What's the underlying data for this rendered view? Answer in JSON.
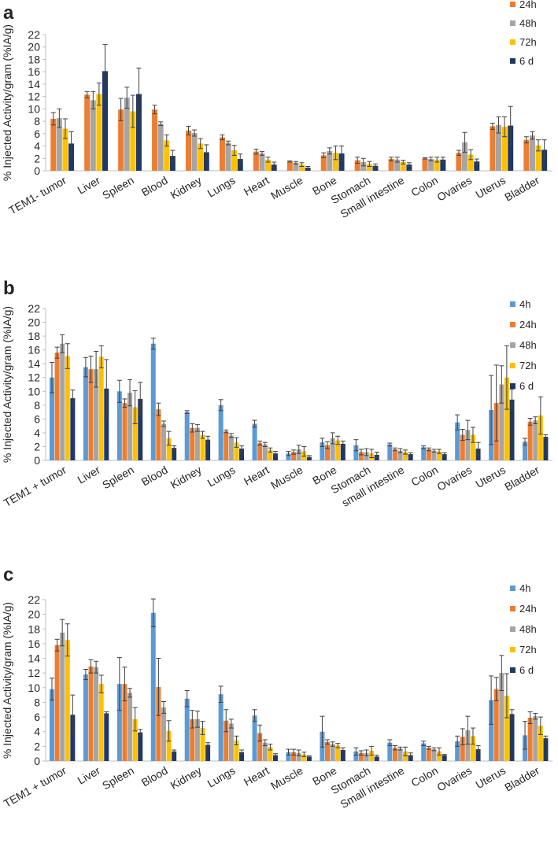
{
  "colors": {
    "4h": "#5b9bd5",
    "24h": "#ed7d31",
    "48h": "#a5a5a5",
    "72h": "#ffc000",
    "6 d": "#203864"
  },
  "chart_data": [
    {
      "type": "bar",
      "panel": "a",
      "ylabel": "% Injected Activity/gram (%IA/g)",
      "ylim": [
        0,
        22
      ],
      "yticks": [
        0,
        2,
        4,
        6,
        8,
        10,
        12,
        14,
        16,
        18,
        20,
        22
      ],
      "categories": [
        "TEM1- tumor",
        "Liver",
        "Spleen",
        "Blood",
        "Kidney",
        "Lungs",
        "Heart",
        "Muscle",
        "Bone",
        "Stomach",
        "Small intestine",
        "Colon",
        "Ovaries",
        "Uterus",
        "Bladder"
      ],
      "series": [
        {
          "name": "24h",
          "values": [
            8.4,
            12.3,
            9.9,
            9.9,
            6.5,
            5.4,
            3.1,
            1.5,
            2.5,
            1.7,
            1.9,
            2.0,
            2.9,
            7.2,
            5.0
          ],
          "errors": [
            1.0,
            0.5,
            1.8,
            0.7,
            0.7,
            0.4,
            0.4,
            0.1,
            0.4,
            0.5,
            0.3,
            0.1,
            0.4,
            0.5,
            0.5
          ]
        },
        {
          "name": "48h",
          "values": [
            8.5,
            11.4,
            11.8,
            7.6,
            6.1,
            4.5,
            2.8,
            1.3,
            3.2,
            1.4,
            1.8,
            1.9,
            4.6,
            7.4,
            5.7
          ],
          "errors": [
            1.5,
            1.4,
            1.7,
            0.3,
            0.5,
            0.3,
            0.3,
            0.2,
            0.5,
            0.6,
            0.4,
            0.3,
            1.6,
            1.3,
            0.6
          ]
        },
        {
          "name": "72h",
          "values": [
            6.8,
            12.4,
            9.6,
            4.9,
            4.4,
            3.3,
            1.8,
            1.0,
            2.9,
            1.1,
            1.4,
            1.8,
            2.6,
            7.1,
            4.1
          ],
          "errors": [
            1.6,
            1.8,
            2.6,
            0.9,
            0.8,
            0.8,
            0.4,
            0.3,
            1.1,
            0.4,
            0.3,
            0.4,
            0.8,
            1.6,
            0.9
          ]
        },
        {
          "name": "6 d",
          "values": [
            4.4,
            16.1,
            12.4,
            2.4,
            3.0,
            1.9,
            1.0,
            0.5,
            2.8,
            0.8,
            1.0,
            1.8,
            1.5,
            7.3,
            3.4
          ],
          "errors": [
            1.9,
            4.3,
            4.2,
            0.9,
            1.2,
            0.8,
            0.4,
            0.2,
            1.2,
            0.3,
            0.3,
            0.4,
            0.4,
            3.1,
            1.6
          ]
        }
      ],
      "legend": [
        "24h",
        "48h",
        "72h",
        "6 d"
      ]
    },
    {
      "type": "bar",
      "panel": "b",
      "ylabel": "% Injected  Activity/gram (%IA/g)",
      "ylim": [
        0,
        22
      ],
      "yticks": [
        0,
        2,
        4,
        6,
        8,
        10,
        12,
        14,
        16,
        18,
        20,
        22
      ],
      "categories": [
        "TEM1 + tumor",
        "Liver",
        "Spleen",
        "Blood",
        "Kidney",
        "Lungs",
        "Heart",
        "Muscle",
        "Bone",
        "Stomach",
        "small intestine",
        "Colon",
        "Ovaries",
        "Uterus",
        "Bladder"
      ],
      "series": [
        {
          "name": "4h",
          "values": [
            12.0,
            13.5,
            10.0,
            16.9,
            7.0,
            8.0,
            5.3,
            1.0,
            2.6,
            2.2,
            2.3,
            1.9,
            5.5,
            7.3,
            2.7
          ],
          "errors": [
            2.2,
            1.4,
            1.6,
            0.8,
            0.2,
            0.8,
            0.5,
            0.3,
            0.6,
            0.8,
            0.2,
            0.2,
            1.1,
            5.0,
            0.5
          ]
        },
        {
          "name": "24h",
          "values": [
            15.6,
            13.2,
            8.3,
            7.4,
            4.7,
            4.2,
            2.5,
            1.2,
            2.2,
            1.2,
            1.6,
            1.6,
            3.7,
            8.3,
            5.6
          ],
          "errors": [
            0.8,
            1.9,
            0.6,
            0.9,
            0.6,
            0.2,
            0.3,
            0.3,
            0.5,
            0.4,
            0.2,
            0.2,
            0.8,
            5.5,
            0.5
          ]
        },
        {
          "name": "48h",
          "values": [
            16.9,
            13.2,
            9.8,
            5.3,
            4.7,
            3.6,
            2.3,
            1.6,
            3.2,
            1.2,
            1.4,
            1.4,
            4.4,
            11.0,
            5.8
          ],
          "errors": [
            1.3,
            2.6,
            1.9,
            0.4,
            0.5,
            0.3,
            0.3,
            0.6,
            0.8,
            0.5,
            0.3,
            0.2,
            1.4,
            2.7,
            0.5
          ]
        },
        {
          "name": "72h",
          "values": [
            15.1,
            15.0,
            7.7,
            3.2,
            3.7,
            2.6,
            1.5,
            1.3,
            2.9,
            1.0,
            1.2,
            1.3,
            3.7,
            12.0,
            6.5
          ],
          "errors": [
            1.8,
            1.6,
            2.4,
            1.0,
            0.5,
            0.7,
            0.3,
            0.7,
            0.6,
            0.6,
            0.3,
            0.3,
            1.1,
            4.6,
            2.7
          ]
        },
        {
          "name": "6 d",
          "values": [
            9.0,
            10.4,
            8.9,
            1.8,
            3.0,
            1.7,
            1.0,
            0.5,
            2.4,
            0.8,
            0.9,
            0.9,
            1.7,
            8.8,
            3.4
          ],
          "errors": [
            1.2,
            4.2,
            2.4,
            0.3,
            0.5,
            0.4,
            0.3,
            0.2,
            0.4,
            0.4,
            0.2,
            0.2,
            0.9,
            1.5,
            0.3
          ]
        }
      ],
      "legend": [
        "4h",
        "24h",
        "48h",
        "72h",
        "6 d"
      ]
    },
    {
      "type": "bar",
      "panel": "c",
      "ylabel": "% Injected Activity/gram (%IA/g)",
      "ylim": [
        0,
        22
      ],
      "yticks": [
        0,
        2,
        4,
        6,
        8,
        10,
        12,
        14,
        16,
        18,
        20,
        22
      ],
      "categories": [
        "TEM1 + tumor",
        "Liver",
        "Spleen",
        "Blood",
        "Kidney",
        "Lungs",
        "Heart",
        "Muscle",
        "Bone",
        "Stomach",
        "Small intestine",
        "Colon",
        "Ovaries",
        "Uterus",
        "Bladder"
      ],
      "series": [
        {
          "name": "4h",
          "values": [
            9.8,
            11.8,
            10.5,
            20.2,
            8.5,
            9.1,
            6.2,
            1.2,
            4.0,
            1.3,
            2.5,
            2.4,
            2.7,
            8.3,
            3.5
          ],
          "errors": [
            1.5,
            0.7,
            3.6,
            1.9,
            1.1,
            1.1,
            0.8,
            0.4,
            2.1,
            0.5,
            0.4,
            0.3,
            0.7,
            3.3,
            1.9
          ]
        },
        {
          "name": "24h",
          "values": [
            15.8,
            12.9,
            10.5,
            10.1,
            5.7,
            5.5,
            3.8,
            1.2,
            2.6,
            1.1,
            1.8,
            1.8,
            3.3,
            9.8,
            5.9
          ],
          "errors": [
            0.8,
            0.9,
            2.3,
            3.9,
            1.2,
            1.5,
            1.1,
            0.4,
            0.3,
            0.3,
            0.3,
            0.2,
            1.1,
            1.6,
            0.8
          ]
        },
        {
          "name": "48h",
          "values": [
            17.5,
            12.8,
            9.3,
            7.3,
            5.7,
            5.1,
            2.5,
            1.1,
            2.3,
            1.1,
            1.7,
            1.6,
            4.2,
            12.0,
            6.1
          ],
          "errors": [
            1.8,
            0.8,
            0.6,
            0.8,
            1.1,
            0.6,
            0.4,
            0.4,
            0.3,
            0.4,
            0.2,
            0.2,
            1.9,
            2.4,
            0.4
          ]
        },
        {
          "name": "72h",
          "values": [
            16.5,
            10.5,
            5.7,
            4.1,
            4.5,
            2.8,
            1.9,
            0.9,
            2.1,
            1.4,
            1.3,
            1.3,
            3.4,
            8.9,
            4.8
          ],
          "errors": [
            2.2,
            1.2,
            1.6,
            1.4,
            0.9,
            0.6,
            0.4,
            0.3,
            0.3,
            0.6,
            0.6,
            0.5,
            1.1,
            3.0,
            1.2
          ]
        },
        {
          "name": "6 d",
          "values": [
            6.3,
            6.5,
            3.9,
            1.3,
            2.2,
            1.2,
            0.8,
            0.6,
            1.5,
            0.6,
            0.8,
            0.8,
            1.6,
            6.4,
            3.1
          ],
          "errors": [
            2.7,
            0.2,
            0.4,
            0.2,
            0.3,
            0.3,
            0.2,
            0.1,
            0.3,
            0.2,
            0.3,
            0.1,
            0.5,
            0.6,
            0.3
          ]
        }
      ],
      "legend": [
        "4h",
        "24h",
        "48h",
        "72h",
        "6 d"
      ]
    }
  ]
}
